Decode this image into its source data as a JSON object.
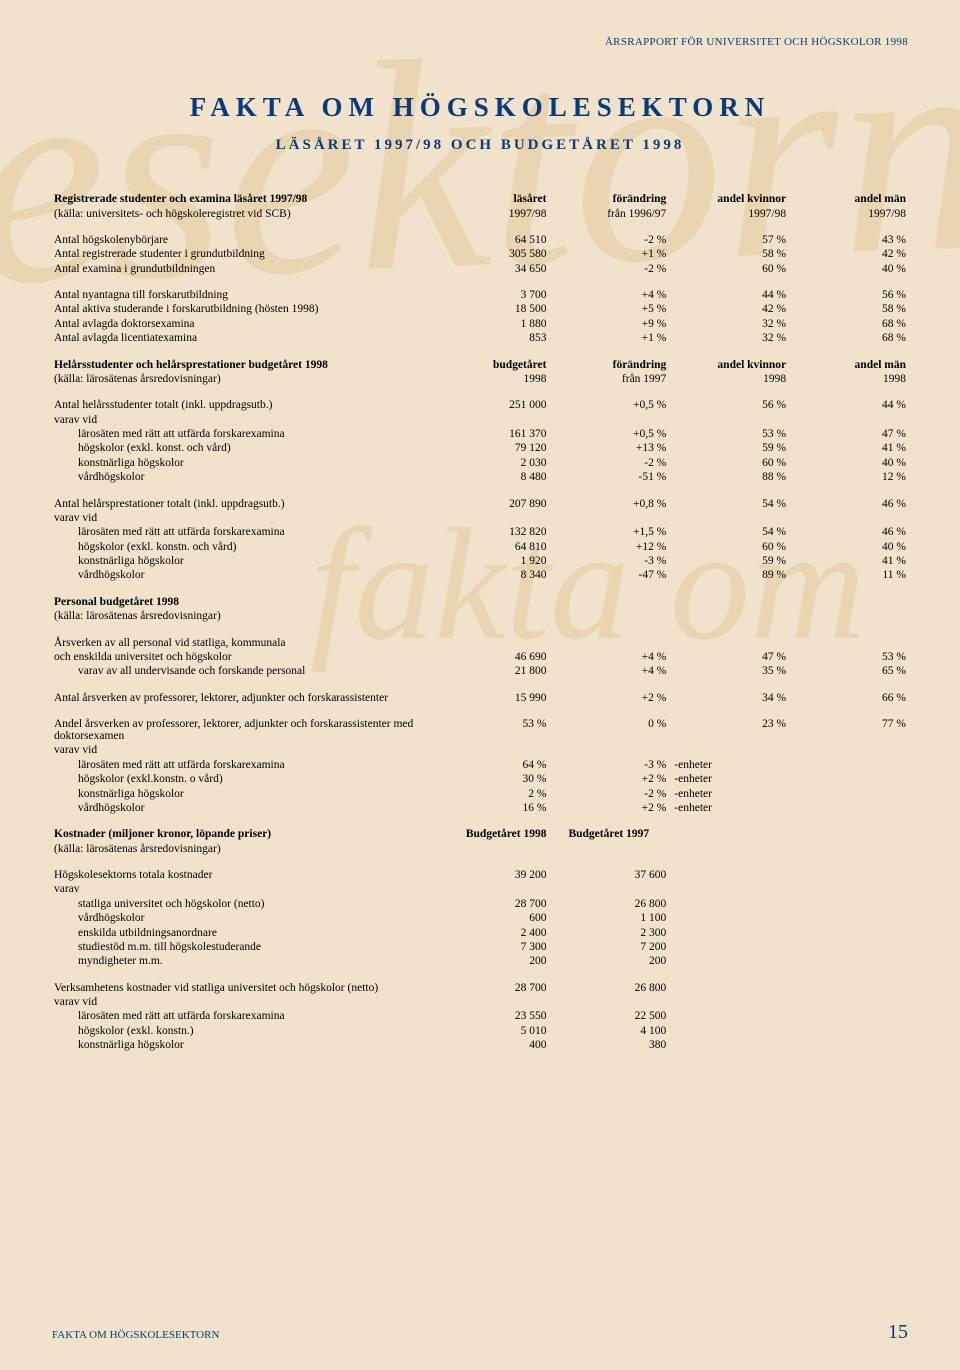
{
  "header_small": "ÅRSRAPPORT FÖR UNIVERSITET OCH HÖGSKOLOR 1998",
  "title": "FAKTA OM HÖGSKOLESEKTORN",
  "subtitle": "LÄSÅRET 1997/98 OCH BUDGETÅRET 1998",
  "watermark1": "högskolesektorn",
  "watermark2": "fakta om",
  "footer_label": "FAKTA OM HÖGSKOLESEKTORN",
  "footer_page": "15",
  "s1": {
    "h_label": "Registrerade studenter och examina läsåret 1997/98",
    "h_c2a": "läsåret",
    "h_c3a": "förändring",
    "h_c4a": "andel kvinnor",
    "h_c5a": "andel män",
    "h_sub": "(källa: universitets- och högskoleregistret vid SCB)",
    "h_c2b": "1997/98",
    "h_c3b": "från 1996/97",
    "h_c4b": "1997/98",
    "h_c5b": "1997/98",
    "rows": [
      {
        "l": "Antal högskolenybörjare",
        "a": "64 510",
        "b": "-2 %",
        "c": "57 %",
        "d": "43 %"
      },
      {
        "l": "Antal registrerade studenter i grundutbildning",
        "a": "305 580",
        "b": "+1 %",
        "c": "58 %",
        "d": "42 %"
      },
      {
        "l": "Antal examina i grundutbildningen",
        "a": "34 650",
        "b": "-2 %",
        "c": "60 %",
        "d": "40 %"
      }
    ],
    "rows2": [
      {
        "l": "Antal nyantagna till forskarutbildning",
        "a": "3 700",
        "b": "+4 %",
        "c": "44 %",
        "d": "56 %"
      },
      {
        "l": "Antal aktiva studerande i forskarutbildning (hösten 1998)",
        "a": "18 500",
        "b": "+5 %",
        "c": "42 %",
        "d": "58 %"
      },
      {
        "l": "Antal avlagda doktorsexamina",
        "a": "1 880",
        "b": "+9 %",
        "c": "32 %",
        "d": "68 %"
      },
      {
        "l": "Antal avlagda licentiatexamina",
        "a": "853",
        "b": "+1 %",
        "c": "32 %",
        "d": "68 %"
      }
    ]
  },
  "s2": {
    "h_label": "Helårsstudenter och helårsprestationer budgetåret 1998",
    "h_c2a": "budgetåret",
    "h_c3a": "förändring",
    "h_c4a": "andel kvinnor",
    "h_c5a": "andel män",
    "h_sub": "(källa: lärosätenas årsredovisningar)",
    "h_c2b": "1998",
    "h_c3b": "från 1997",
    "h_c4b": "1998",
    "h_c5b": "1998",
    "r1": {
      "l": "Antal helårsstudenter totalt (inkl. uppdragsutb.)",
      "a": "251 000",
      "b": "+0,5 %",
      "c": "56 %",
      "d": "44 %"
    },
    "varav": "varav vid",
    "sub1": [
      {
        "l": "lärosäten med rätt att utfärda forskarexamina",
        "a": "161 370",
        "b": "+0,5 %",
        "c": "53 %",
        "d": "47 %"
      },
      {
        "l": "högskolor (exkl. konst. och vård)",
        "a": "79 120",
        "b": "+13 %",
        "c": "59 %",
        "d": "41 %"
      },
      {
        "l": "konstnärliga högskolor",
        "a": "2 030",
        "b": "-2 %",
        "c": "60 %",
        "d": "40 %"
      },
      {
        "l": "vårdhögskolor",
        "a": "8 480",
        "b": "-51 %",
        "c": "88 %",
        "d": "12 %"
      }
    ],
    "r2": {
      "l": "Antal helårsprestationer totalt (inkl. uppdragsutb.)",
      "a": "207 890",
      "b": "+0,8 %",
      "c": "54 %",
      "d": "46 %"
    },
    "sub2": [
      {
        "l": "lärosäten med rätt att utfärda forskarexamina",
        "a": "132 820",
        "b": "+1,5 %",
        "c": "54 %",
        "d": "46 %"
      },
      {
        "l": "högskolor (exkl. konstn. och vård)",
        "a": "64 810",
        "b": "+12 %",
        "c": "60 %",
        "d": "40 %"
      },
      {
        "l": "konstnärliga högskolor",
        "a": "1 920",
        "b": "-3 %",
        "c": "59 %",
        "d": "41 %"
      },
      {
        "l": "vårdhögskolor",
        "a": "8 340",
        "b": "-47 %",
        "c": "89 %",
        "d": "11 %"
      }
    ]
  },
  "s3": {
    "h_label": "Personal budgetåret 1998",
    "h_sub": "(källa: lärosätenas årsredovisningar)",
    "intro1": "Årsverken av all personal vid statliga, kommunala",
    "r1": {
      "l": "och enskilda universitet och högskolor",
      "a": "46 690",
      "b": "+4 %",
      "c": "47 %",
      "d": "53 %"
    },
    "r2": {
      "l": "varav av all undervisande och forskande personal",
      "a": "21 800",
      "b": "+4 %",
      "c": "35 %",
      "d": "65 %"
    },
    "r3": {
      "l": "Antal årsverken av professorer, lektorer, adjunkter och forskarassistenter",
      "a": "15 990",
      "b": "+2 %",
      "c": "34 %",
      "d": "66 %"
    },
    "r4": {
      "l": "Andel årsverken av professorer, lektorer, adjunkter och forskarassistenter med doktorsexamen",
      "a": "53 %",
      "b": "0 %",
      "c": "23 %",
      "d": "77 %"
    },
    "varav": "varav vid",
    "unit": "-enheter",
    "sub": [
      {
        "l": "lärosäten med rätt att utfärda forskarexamina",
        "a": "64 %",
        "b": "-3 %"
      },
      {
        "l": "högskolor (exkl.konstn. o vård)",
        "a": "30 %",
        "b": "+2 %"
      },
      {
        "l": "konstnärliga högskolor",
        "a": "2 %",
        "b": "-2 %"
      },
      {
        "l": "vårdhögskolor",
        "a": "16 %",
        "b": "+2 %"
      }
    ]
  },
  "s4": {
    "h_label": "Kostnader (miljoner kronor, löpande priser)",
    "h_c2": "Budgetåret 1998",
    "h_c3": "Budgetåret 1997",
    "h_sub": "(källa: lärosätenas årsredovisningar)",
    "r1": {
      "l": "Högskolesektorns totala kostnader",
      "a": "39 200",
      "b": "37 600"
    },
    "varav": "varav",
    "sub1": [
      {
        "l": "statliga universitet och högskolor (netto)",
        "a": "28 700",
        "b": "26 800"
      },
      {
        "l": "vårdhögskolor",
        "a": "600",
        "b": "1 100"
      },
      {
        "l": "enskilda utbildningsanordnare",
        "a": "2 400",
        "b": "2 300"
      },
      {
        "l": "studiestöd m.m. till högskolestuderande",
        "a": "7 300",
        "b": "7 200"
      },
      {
        "l": "myndigheter m.m.",
        "a": "200",
        "b": "200"
      }
    ],
    "r2": {
      "l": "Verksamhetens kostnader vid statliga universitet och högskolor (netto)",
      "a": "28 700",
      "b": "26 800"
    },
    "varav2": "varav vid",
    "sub2": [
      {
        "l": "lärosäten med rätt att utfärda forskarexamina",
        "a": "23 550",
        "b": "22 500"
      },
      {
        "l": "högskolor (exkl. konstn.)",
        "a": "5 010",
        "b": "4 100"
      },
      {
        "l": "konstnärliga högskolor",
        "a": "400",
        "b": "380"
      }
    ]
  }
}
